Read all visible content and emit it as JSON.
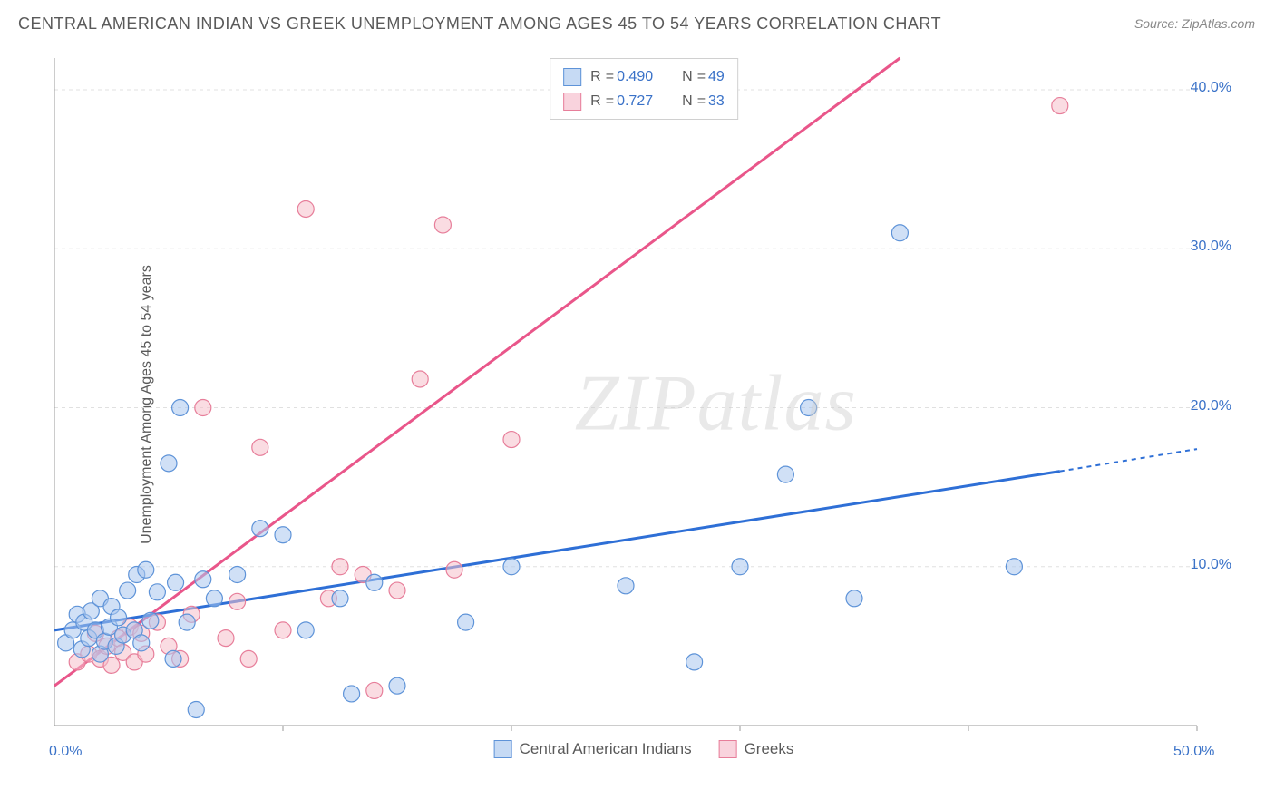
{
  "title": "CENTRAL AMERICAN INDIAN VS GREEK UNEMPLOYMENT AMONG AGES 45 TO 54 YEARS CORRELATION CHART",
  "source": "Source: ZipAtlas.com",
  "ylabel": "Unemployment Among Ages 45 to 54 years",
  "watermark": "ZIPatlas",
  "chart": {
    "type": "scatter",
    "xlim": [
      0,
      50
    ],
    "ylim": [
      0,
      42
    ],
    "xtick_labels": [
      "0.0%",
      "50.0%"
    ],
    "xtick_positions": [
      0,
      50
    ],
    "ytick_labels": [
      "10.0%",
      "20.0%",
      "30.0%",
      "40.0%"
    ],
    "ytick_positions": [
      10,
      20,
      30,
      40
    ],
    "x_grid_positions": [
      10,
      20,
      30,
      40,
      50
    ],
    "grid_color": "#e0e0e0",
    "background_color": "#ffffff",
    "marker_radius": 9,
    "series": [
      {
        "name": "Central American Indians",
        "color_fill": "#a9c7ef",
        "color_stroke": "#5e93d8",
        "R": "0.490",
        "N": "49",
        "trend": {
          "x1": 0,
          "y1": 6.0,
          "x2": 44,
          "y2": 16.0,
          "dash_x2": 50,
          "dash_y2": 17.4
        },
        "points": [
          [
            0.5,
            5.2
          ],
          [
            0.8,
            6.0
          ],
          [
            1.0,
            7.0
          ],
          [
            1.2,
            4.8
          ],
          [
            1.3,
            6.5
          ],
          [
            1.5,
            5.5
          ],
          [
            1.6,
            7.2
          ],
          [
            1.8,
            6.0
          ],
          [
            2.0,
            4.5
          ],
          [
            2.0,
            8.0
          ],
          [
            2.2,
            5.3
          ],
          [
            2.4,
            6.2
          ],
          [
            2.5,
            7.5
          ],
          [
            2.7,
            5.0
          ],
          [
            2.8,
            6.8
          ],
          [
            3.0,
            5.7
          ],
          [
            3.2,
            8.5
          ],
          [
            3.5,
            6.0
          ],
          [
            3.6,
            9.5
          ],
          [
            3.8,
            5.2
          ],
          [
            4.0,
            9.8
          ],
          [
            4.2,
            6.6
          ],
          [
            4.5,
            8.4
          ],
          [
            5.0,
            16.5
          ],
          [
            5.2,
            4.2
          ],
          [
            5.3,
            9.0
          ],
          [
            5.5,
            20.0
          ],
          [
            5.8,
            6.5
          ],
          [
            6.2,
            1.0
          ],
          [
            6.5,
            9.2
          ],
          [
            7.0,
            8.0
          ],
          [
            8.0,
            9.5
          ],
          [
            9.0,
            12.4
          ],
          [
            10.0,
            12.0
          ],
          [
            11.0,
            6.0
          ],
          [
            12.5,
            8.0
          ],
          [
            13.0,
            2.0
          ],
          [
            14.0,
            9.0
          ],
          [
            15.0,
            2.5
          ],
          [
            18.0,
            6.5
          ],
          [
            20.0,
            10.0
          ],
          [
            25.0,
            8.8
          ],
          [
            28.0,
            4.0
          ],
          [
            30.0,
            10.0
          ],
          [
            32.0,
            15.8
          ],
          [
            33.0,
            20.0
          ],
          [
            35.0,
            8.0
          ],
          [
            37.0,
            31.0
          ],
          [
            42.0,
            10.0
          ]
        ]
      },
      {
        "name": "Greeks",
        "color_fill": "#f6bfcb",
        "color_stroke": "#e77e9a",
        "R": "0.727",
        "N": "33",
        "trend": {
          "x1": 0,
          "y1": 2.5,
          "x2": 37,
          "y2": 42.0
        },
        "points": [
          [
            1.0,
            4.0
          ],
          [
            1.5,
            4.5
          ],
          [
            1.8,
            5.8
          ],
          [
            2.0,
            4.2
          ],
          [
            2.3,
            5.0
          ],
          [
            2.5,
            3.8
          ],
          [
            2.8,
            5.5
          ],
          [
            3.0,
            4.6
          ],
          [
            3.3,
            6.2
          ],
          [
            3.5,
            4.0
          ],
          [
            3.8,
            5.8
          ],
          [
            4.0,
            4.5
          ],
          [
            4.5,
            6.5
          ],
          [
            5.0,
            5.0
          ],
          [
            5.5,
            4.2
          ],
          [
            6.0,
            7.0
          ],
          [
            6.5,
            20.0
          ],
          [
            7.5,
            5.5
          ],
          [
            8.0,
            7.8
          ],
          [
            8.5,
            4.2
          ],
          [
            9.0,
            17.5
          ],
          [
            10.0,
            6.0
          ],
          [
            11.0,
            32.5
          ],
          [
            12.0,
            8.0
          ],
          [
            12.5,
            10.0
          ],
          [
            13.5,
            9.5
          ],
          [
            14.0,
            2.2
          ],
          [
            15.0,
            8.5
          ],
          [
            16.0,
            21.8
          ],
          [
            17.0,
            31.5
          ],
          [
            17.5,
            9.8
          ],
          [
            20.0,
            18.0
          ],
          [
            44.0,
            39.0
          ]
        ]
      }
    ],
    "legend_top": [
      {
        "swatch": "blue",
        "R": "0.490",
        "N": "49"
      },
      {
        "swatch": "pink",
        "R": "0.727",
        "N": "33"
      }
    ],
    "legend_bottom": [
      {
        "swatch": "blue",
        "label": "Central American Indians"
      },
      {
        "swatch": "pink",
        "label": "Greeks"
      }
    ]
  }
}
